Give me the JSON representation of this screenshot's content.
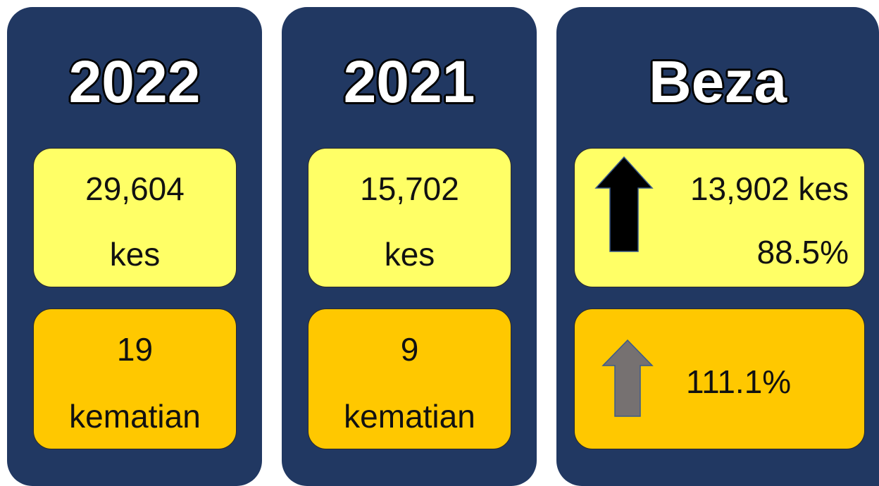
{
  "cards": [
    {
      "title": "2022",
      "cases": {
        "value": "29,604",
        "unit": "kes"
      },
      "deaths": {
        "value": "19",
        "unit": "kematian"
      }
    },
    {
      "title": "2021",
      "cases": {
        "value": "15,702",
        "unit": "kes"
      },
      "deaths": {
        "value": "9",
        "unit": "kematian"
      }
    },
    {
      "title": "Beza",
      "cases": {
        "value": "13,902 kes",
        "percent": "88.5%"
      },
      "deaths": {
        "percent": "111.1%"
      }
    }
  ]
}
